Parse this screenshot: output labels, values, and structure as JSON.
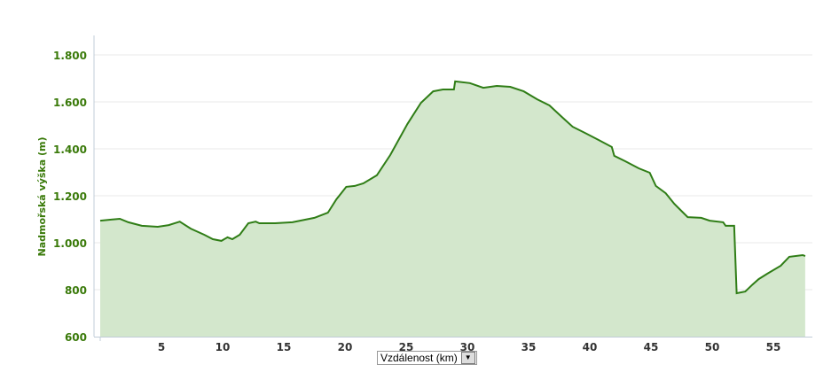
{
  "chart_data": {
    "type": "area",
    "title": "",
    "ylabel": "Nadmořská výška (m)",
    "xlabel": "Vzdálenost (km)",
    "xlim": [
      0,
      58
    ],
    "ylim": [
      600,
      1800
    ],
    "grid": true,
    "x_ticks": [
      5,
      10,
      15,
      20,
      25,
      30,
      35,
      40,
      45,
      50,
      55
    ],
    "y_ticks": [
      600,
      800,
      1000,
      1200,
      1400,
      1600,
      1800
    ],
    "y_tick_labels": [
      "600",
      "800",
      "1.000",
      "1.200",
      "1.400",
      "1.600",
      "1.800"
    ],
    "colors": {
      "line": "#2f7d16",
      "fill": "#d3e7cc",
      "tick_text": "#3a7a0a",
      "axis": "#c0ccd8",
      "grid": "#e8e8e8"
    },
    "x": [
      0,
      1.6,
      2.3,
      3.4,
      4.7,
      5.6,
      6.5,
      7.4,
      8.5,
      9.2,
      9.9,
      10.4,
      10.8,
      11.4,
      12.1,
      12.7,
      13.0,
      14.3,
      15.7,
      17.5,
      18.6,
      19.3,
      20.1,
      20.8,
      21.5,
      22.6,
      23.7,
      25.1,
      26.2,
      27.2,
      28.0,
      28.9,
      29.0,
      30.2,
      31.3,
      32.4,
      33.5,
      34.6,
      35.7,
      36.7,
      37.8,
      38.6,
      39.6,
      40.7,
      41.8,
      42.0,
      42.9,
      44.0,
      44.9,
      45.4,
      46.2,
      46.9,
      48.0,
      49.1,
      49.8,
      50.9,
      51.1,
      51.8,
      52.0,
      52.7,
      53.3,
      53.8,
      54.5,
      55.6,
      56.3,
      57.4,
      57.6
    ],
    "y": [
      1094,
      1102,
      1087,
      1072,
      1068,
      1075,
      1090,
      1060,
      1034,
      1015,
      1008,
      1023,
      1015,
      1034,
      1083,
      1090,
      1083,
      1083,
      1087,
      1106,
      1128,
      1185,
      1238,
      1242,
      1253,
      1287,
      1374,
      1506,
      1596,
      1645,
      1653,
      1653,
      1687,
      1680,
      1660,
      1668,
      1664,
      1645,
      1611,
      1585,
      1532,
      1494,
      1468,
      1438,
      1408,
      1370,
      1347,
      1317,
      1298,
      1242,
      1211,
      1166,
      1109,
      1106,
      1094,
      1087,
      1072,
      1072,
      785,
      792,
      822,
      845,
      868,
      902,
      940,
      947,
      943
    ]
  },
  "xaxis_selector": {
    "label": "Vzdálenost (km)",
    "icon": "chevron-down-icon"
  }
}
